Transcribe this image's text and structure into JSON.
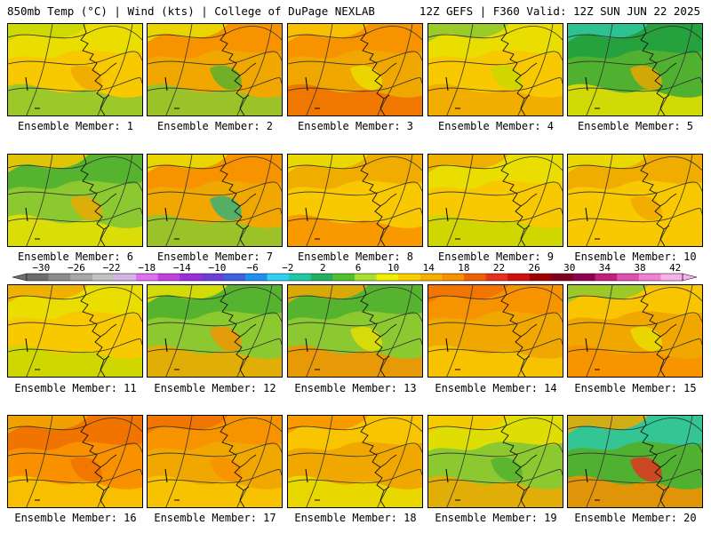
{
  "header": {
    "left": "850mb Temp (°C) | Wind (kts) | College of DuPage NEXLAB",
    "right": "12Z GEFS | F360 Valid: 12Z SUN JUN 22 2025"
  },
  "colorbar": {
    "labels": [
      "−30",
      "−26",
      "−22",
      "−18",
      "−14",
      "−10",
      "−6",
      "−2",
      "2",
      "6",
      "10",
      "14",
      "18",
      "22",
      "26",
      "30",
      "34",
      "38",
      "42"
    ],
    "colors": [
      "#6e6e6e",
      "#8c8c8c",
      "#a8a8a8",
      "#c2c2c2",
      "#d6b3e6",
      "#e070f0",
      "#c040e0",
      "#9a30d8",
      "#6a40d8",
      "#4060e0",
      "#2090f0",
      "#30d0f0",
      "#20c8a8",
      "#20b060",
      "#50c030",
      "#a8e030",
      "#f0f000",
      "#f8d000",
      "#f8b000",
      "#f89000",
      "#f06000",
      "#e83020",
      "#d01010",
      "#a00000",
      "#800020",
      "#900050",
      "#c0207a",
      "#e050b0",
      "#f080d0",
      "#f8b0e8"
    ]
  },
  "members": [
    {
      "label": "Ensemble Member: 1",
      "palette": [
        "#f8c800",
        "#e8e000",
        "#c8d800",
        "#8cc830",
        "#f0a800"
      ]
    },
    {
      "label": "Ensemble Member: 2",
      "palette": [
        "#f0a800",
        "#f89000",
        "#e8e000",
        "#8cc830",
        "#50b030"
      ]
    },
    {
      "label": "Ensemble Member: 3",
      "palette": [
        "#f0a800",
        "#f89000",
        "#f8c800",
        "#f07000",
        "#e8e000"
      ]
    },
    {
      "label": "Ensemble Member: 4",
      "palette": [
        "#f8c800",
        "#e8e000",
        "#8cc830",
        "#f0a800",
        "#c8d800"
      ]
    },
    {
      "label": "Ensemble Member: 5",
      "palette": [
        "#50b030",
        "#20a040",
        "#30c8a0",
        "#e8e000",
        "#f0a800"
      ]
    },
    {
      "label": "Ensemble Member: 6",
      "palette": [
        "#8cc830",
        "#50b030",
        "#f8c800",
        "#e8e000",
        "#f0a800"
      ]
    },
    {
      "label": "Ensemble Member: 7",
      "palette": [
        "#f0a800",
        "#f89000",
        "#e8e000",
        "#8cc830",
        "#30b080"
      ]
    },
    {
      "label": "Ensemble Member: 8",
      "palette": [
        "#f8c800",
        "#f0a800",
        "#e8e000",
        "#f89000",
        "#f8c800"
      ]
    },
    {
      "label": "Ensemble Member: 9",
      "palette": [
        "#f8c800",
        "#e8e000",
        "#f0a800",
        "#c8d800",
        "#f8c800"
      ]
    },
    {
      "label": "Ensemble Member: 10",
      "palette": [
        "#f8c800",
        "#f0a800",
        "#e8e000",
        "#f8c800",
        "#f0a800"
      ]
    },
    {
      "label": "Ensemble Member: 11",
      "palette": [
        "#f8c800",
        "#e8e000",
        "#f0a800",
        "#c8d800",
        "#f8c800"
      ]
    },
    {
      "label": "Ensemble Member: 12",
      "palette": [
        "#8cc830",
        "#50b030",
        "#e8e000",
        "#f0a800",
        "#f89000"
      ]
    },
    {
      "label": "Ensemble Member: 13",
      "palette": [
        "#8cc830",
        "#50b030",
        "#f0a800",
        "#f89000",
        "#e8e000"
      ]
    },
    {
      "label": "Ensemble Member: 14",
      "palette": [
        "#f0a800",
        "#f89000",
        "#f07000",
        "#f8c800",
        "#f0a800"
      ]
    },
    {
      "label": "Ensemble Member: 15",
      "palette": [
        "#f0a800",
        "#f8c800",
        "#8cc830",
        "#f89000",
        "#e8e000"
      ]
    },
    {
      "label": "Ensemble Member: 16",
      "palette": [
        "#f89000",
        "#f07000",
        "#f0a800",
        "#f8c800",
        "#f07000"
      ]
    },
    {
      "label": "Ensemble Member: 17",
      "palette": [
        "#f0a800",
        "#f89000",
        "#f07000",
        "#f8c800",
        "#f89000"
      ]
    },
    {
      "label": "Ensemble Member: 18",
      "palette": [
        "#f0a800",
        "#f8c800",
        "#f89000",
        "#e8e000",
        "#f0a800"
      ]
    },
    {
      "label": "Ensemble Member: 19",
      "palette": [
        "#8cc830",
        "#e8e000",
        "#f8c800",
        "#f0a800",
        "#50b030"
      ]
    },
    {
      "label": "Ensemble Member: 20",
      "palette": [
        "#50b030",
        "#30c8a0",
        "#f0a800",
        "#f89000",
        "#e83020"
      ]
    }
  ]
}
